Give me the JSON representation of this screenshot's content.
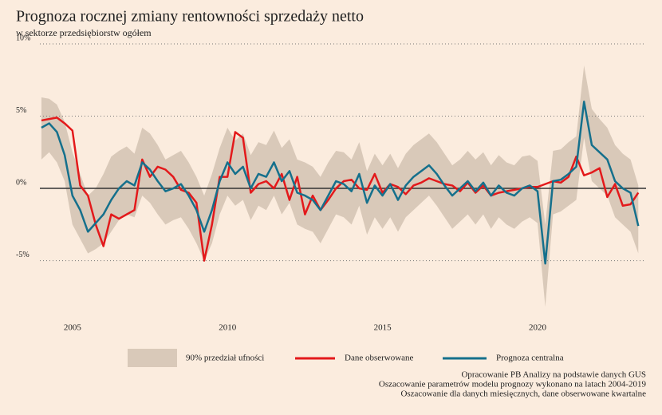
{
  "chart_data": {
    "type": "line",
    "title": "Prognoza rocznej zmiany rentowności sprzedaży netto",
    "subtitle": "w sektorze przedsiębiorstw ogółem",
    "notes": [
      "Opracowanie PB Analizy na podstawie danych GUS",
      "Oszacowanie parametrów modelu prognozy wykonano na latach 2004-2019",
      "Oszacowanie dla danych miesięcznych, dane obserwowane kwartalne"
    ],
    "xlim": [
      2003.95,
      2023.5
    ],
    "xticks": [
      2005,
      2010,
      2015,
      2020
    ],
    "ylim": [
      -9,
      10
    ],
    "yticks": [
      {
        "value": -5,
        "label": "-5%"
      },
      {
        "value": 0,
        "label": "0%"
      },
      {
        "value": 5,
        "label": "5%"
      },
      {
        "value": 10,
        "label": "10%"
      }
    ],
    "x": [
      2004.0,
      2004.25,
      2004.5,
      2004.75,
      2005.0,
      2005.25,
      2005.5,
      2005.75,
      2006.0,
      2006.25,
      2006.5,
      2006.75,
      2007.0,
      2007.25,
      2007.5,
      2007.75,
      2008.0,
      2008.25,
      2008.5,
      2008.75,
      2009.0,
      2009.25,
      2009.5,
      2009.75,
      2010.0,
      2010.25,
      2010.5,
      2010.75,
      2011.0,
      2011.25,
      2011.5,
      2011.75,
      2012.0,
      2012.25,
      2012.5,
      2012.75,
      2013.0,
      2013.25,
      2013.5,
      2013.75,
      2014.0,
      2014.25,
      2014.5,
      2014.75,
      2015.0,
      2015.25,
      2015.5,
      2015.75,
      2016.0,
      2016.25,
      2016.5,
      2016.75,
      2017.0,
      2017.25,
      2017.5,
      2017.75,
      2018.0,
      2018.25,
      2018.5,
      2018.75,
      2019.0,
      2019.25,
      2019.5,
      2019.75,
      2020.0,
      2020.25,
      2020.5,
      2020.75,
      2021.0,
      2021.25,
      2021.5,
      2021.75,
      2022.0,
      2022.25,
      2022.5,
      2022.75,
      2023.0,
      2023.25
    ],
    "series": [
      {
        "name": "90% przedział ufności",
        "color": "#d9c9b9",
        "upper": [
          6.3,
          6.2,
          5.8,
          4.6,
          2.5,
          1.0,
          -0.5,
          0.0,
          1.0,
          2.2,
          2.6,
          2.9,
          2.4,
          4.2,
          3.8,
          3.0,
          2.0,
          2.3,
          2.6,
          1.8,
          0.8,
          -0.5,
          1.0,
          2.8,
          4.2,
          3.3,
          3.8,
          2.3,
          3.2,
          3.0,
          4.0,
          2.8,
          3.4,
          2.0,
          1.8,
          1.5,
          0.8,
          1.8,
          2.6,
          2.5,
          2.0,
          3.2,
          1.2,
          2.4,
          1.6,
          2.4,
          1.4,
          2.4,
          3.0,
          3.4,
          3.8,
          3.2,
          2.4,
          1.6,
          2.0,
          2.6,
          2.0,
          2.5,
          1.6,
          2.3,
          1.8,
          1.6,
          2.2,
          2.3,
          1.9,
          -2.5,
          2.6,
          2.7,
          3.2,
          3.6,
          8.5,
          5.5,
          4.8,
          4.2,
          3.0,
          2.4,
          2.0,
          0.2
        ],
        "lower": [
          2.0,
          2.5,
          1.8,
          0.5,
          -2.5,
          -3.5,
          -4.5,
          -4.2,
          -3.8,
          -3.0,
          -2.2,
          -1.8,
          -2.0,
          -0.5,
          -1.0,
          -1.8,
          -2.5,
          -2.2,
          -2.0,
          -2.8,
          -3.8,
          -5.0,
          -3.8,
          -1.8,
          -0.5,
          -1.2,
          -0.8,
          -2.2,
          -1.2,
          -1.5,
          -0.5,
          -1.8,
          -1.0,
          -2.5,
          -2.8,
          -3.0,
          -3.8,
          -2.8,
          -1.8,
          -2.0,
          -2.5,
          -1.2,
          -3.2,
          -2.0,
          -2.8,
          -2.0,
          -3.0,
          -2.0,
          -1.5,
          -1.0,
          -0.5,
          -1.2,
          -2.0,
          -2.8,
          -2.3,
          -1.8,
          -2.5,
          -1.8,
          -2.8,
          -2.0,
          -2.5,
          -2.8,
          -2.3,
          -2.0,
          -2.4,
          -8.2,
          -1.8,
          -1.6,
          -1.2,
          -0.8,
          3.5,
          0.5,
          0.0,
          -0.5,
          -2.0,
          -2.5,
          -3.0,
          -4.5
        ]
      },
      {
        "name": "Dane obserwowane",
        "color": "#e3191b",
        "values": [
          4.7,
          4.8,
          4.9,
          4.5,
          4.0,
          0.2,
          -0.5,
          -2.5,
          -4.0,
          -1.8,
          -2.1,
          -1.8,
          -1.5,
          2.0,
          0.8,
          1.5,
          1.3,
          0.8,
          -0.1,
          -0.3,
          -1.0,
          -5.0,
          -2.5,
          0.8,
          0.8,
          3.9,
          3.5,
          -0.3,
          0.3,
          0.5,
          0.0,
          1.0,
          -0.8,
          0.8,
          -1.8,
          -0.5,
          -1.5,
          -0.8,
          0.0,
          0.5,
          0.6,
          0.0,
          -0.1,
          1.0,
          -0.3,
          0.3,
          0.1,
          -0.4,
          0.2,
          0.4,
          0.7,
          0.5,
          0.3,
          0.2,
          -0.2,
          0.4,
          -0.3,
          0.2,
          -0.5,
          -0.3,
          -0.2,
          -0.1,
          0.0,
          0.1,
          0.1,
          0.3,
          0.5,
          0.4,
          0.8,
          2.2,
          0.9,
          1.1,
          1.4,
          -0.6,
          0.3,
          -1.2,
          -1.1,
          -0.3
        ]
      },
      {
        "name": "Prognoza centralna",
        "color": "#15708c",
        "values": [
          4.2,
          4.5,
          3.9,
          2.3,
          -0.5,
          -1.5,
          -3.0,
          -2.4,
          -1.8,
          -0.8,
          0.0,
          0.5,
          0.2,
          1.8,
          1.3,
          0.5,
          -0.2,
          0.0,
          0.3,
          -0.5,
          -1.5,
          -3.0,
          -1.5,
          0.5,
          1.8,
          1.0,
          1.5,
          0.0,
          1.0,
          0.8,
          1.8,
          0.5,
          1.2,
          -0.3,
          -0.5,
          -0.8,
          -1.5,
          -0.5,
          0.5,
          0.3,
          -0.2,
          1.0,
          -1.0,
          0.2,
          -0.5,
          0.3,
          -0.8,
          0.2,
          0.8,
          1.2,
          1.6,
          1.0,
          0.2,
          -0.5,
          0.0,
          0.5,
          -0.2,
          0.4,
          -0.5,
          0.2,
          -0.3,
          -0.5,
          0.0,
          0.2,
          -0.2,
          -5.2,
          0.5,
          0.6,
          1.0,
          1.5,
          6.0,
          3.0,
          2.5,
          2.0,
          0.5,
          0.0,
          -0.3,
          -2.6
        ]
      }
    ]
  }
}
